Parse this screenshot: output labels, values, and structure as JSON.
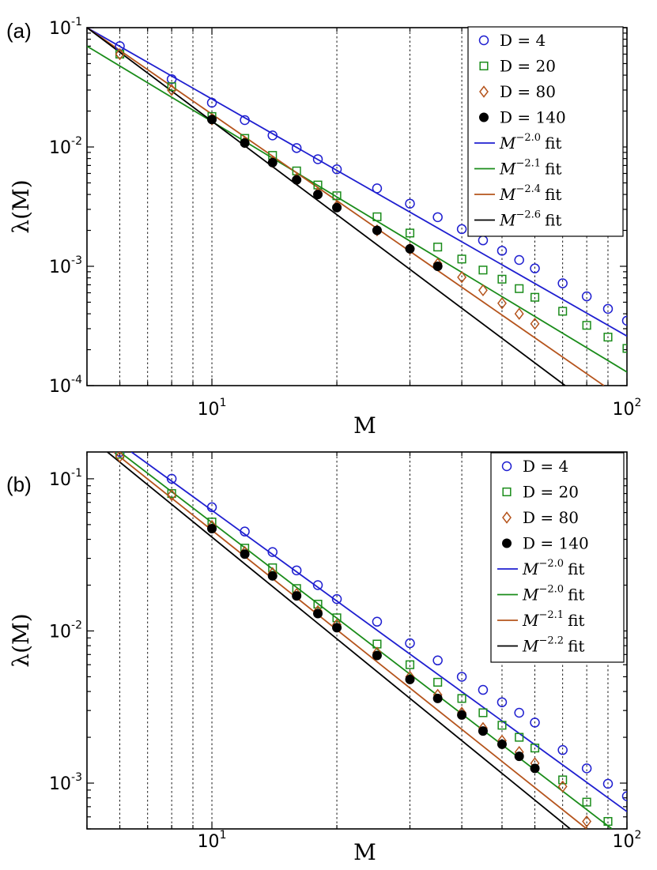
{
  "chart_data": [
    {
      "type": "scatter",
      "panel_label": "(a)",
      "xlabel": "M",
      "ylabel": "λ(M)",
      "x_scale": "log",
      "y_scale": "log",
      "xlim": [
        5,
        100
      ],
      "ylim": [
        0.0001,
        0.1
      ],
      "x_ticks": [
        {
          "value": 10,
          "base": "10",
          "exp": "1"
        },
        {
          "value": 100,
          "base": "10",
          "exp": "2"
        }
      ],
      "y_ticks": [
        {
          "value": 0.1,
          "base": "10",
          "exp": "-1"
        },
        {
          "value": 0.01,
          "base": "10",
          "exp": "-2"
        },
        {
          "value": 0.001,
          "base": "10",
          "exp": "-3"
        },
        {
          "value": 0.0001,
          "base": "10",
          "exp": "-4"
        }
      ],
      "grid": "x-dotted",
      "legend_position": "top-right",
      "series": [
        {
          "name": "D = 4",
          "marker": "circle",
          "color": "#1f1fd0",
          "x": [
            6,
            8,
            10,
            12,
            14,
            16,
            18,
            20,
            25,
            30,
            35,
            40,
            45,
            50,
            55,
            60,
            70,
            80,
            90,
            100
          ],
          "y": [
            0.07,
            0.037,
            0.0235,
            0.0168,
            0.0125,
            0.0098,
            0.0079,
            0.0065,
            0.0045,
            0.00335,
            0.00258,
            0.00205,
            0.00165,
            0.00135,
            0.00113,
            0.00096,
            0.00072,
            0.00056,
            0.00044,
            0.00035
          ]
        },
        {
          "name": "D = 20",
          "marker": "square",
          "color": "#1a8c1a",
          "x": [
            6,
            8,
            10,
            12,
            14,
            16,
            18,
            20,
            25,
            30,
            35,
            40,
            45,
            50,
            55,
            60,
            70,
            80,
            90,
            100
          ],
          "y": [
            0.06,
            0.032,
            0.018,
            0.0118,
            0.0085,
            0.0063,
            0.0048,
            0.0039,
            0.0026,
            0.0019,
            0.00145,
            0.00115,
            0.00093,
            0.00078,
            0.00065,
            0.00055,
            0.00042,
            0.00032,
            0.000255,
            0.000205
          ]
        },
        {
          "name": "D = 80",
          "marker": "diamond",
          "color": "#b5541c",
          "x": [
            6,
            8,
            10,
            12,
            14,
            16,
            18,
            20,
            25,
            30,
            35,
            40,
            45,
            50,
            55,
            60
          ],
          "y": [
            0.06,
            0.03,
            0.017,
            0.011,
            0.0075,
            0.0054,
            0.0041,
            0.0032,
            0.002,
            0.0014,
            0.00105,
            0.00081,
            0.00063,
            0.00049,
            0.0004,
            0.00033
          ]
        },
        {
          "name": "D = 140",
          "marker": "filled-circle",
          "color": "#000000",
          "x": [
            10,
            12,
            14,
            16,
            18,
            20,
            25,
            30,
            35
          ],
          "y": [
            0.017,
            0.0108,
            0.0074,
            0.0053,
            0.004,
            0.0031,
            0.002,
            0.0014,
            0.001
          ]
        }
      ],
      "fits": [
        {
          "name": "M^{-2.0} fit",
          "base": "M",
          "exp": "−2.0",
          "suffix": "fit",
          "color": "#1f1fd0",
          "x": [
            5,
            100
          ],
          "y": [
            0.1,
            0.00026
          ]
        },
        {
          "name": "M^{-2.1} fit",
          "base": "M",
          "exp": "−2.1",
          "suffix": "fit",
          "color": "#1a8c1a",
          "x": [
            5,
            100
          ],
          "y": [
            0.07,
            0.00013
          ]
        },
        {
          "name": "M^{-2.4} fit",
          "base": "M",
          "exp": "−2.4",
          "suffix": "fit",
          "color": "#b5541c",
          "x": [
            5,
            88
          ],
          "y": [
            0.1,
            0.0001
          ]
        },
        {
          "name": "M^{-2.6} fit",
          "base": "M",
          "exp": "−2.6",
          "suffix": "fit",
          "color": "#000000",
          "x": [
            5,
            71
          ],
          "y": [
            0.1,
            0.0001
          ]
        }
      ]
    },
    {
      "type": "scatter",
      "panel_label": "(b)",
      "xlabel": "M",
      "ylabel": "λ(M)",
      "x_scale": "log",
      "y_scale": "log",
      "xlim": [
        5,
        100
      ],
      "ylim": [
        0.0005,
        0.15
      ],
      "x_ticks": [
        {
          "value": 10,
          "base": "10",
          "exp": "1"
        },
        {
          "value": 100,
          "base": "10",
          "exp": "2"
        }
      ],
      "y_ticks": [
        {
          "value": 0.1,
          "base": "10",
          "exp": "-1"
        },
        {
          "value": 0.01,
          "base": "10",
          "exp": "-2"
        },
        {
          "value": 0.001,
          "base": "10",
          "exp": "-3"
        }
      ],
      "grid": "x-dotted",
      "legend_position": "top-right",
      "series": [
        {
          "name": "D = 4",
          "marker": "circle",
          "color": "#1f1fd0",
          "x": [
            6,
            8,
            10,
            12,
            14,
            16,
            18,
            20,
            25,
            30,
            35,
            40,
            45,
            50,
            55,
            60,
            70,
            80,
            90,
            100
          ],
          "y": [
            0.15,
            0.1,
            0.065,
            0.045,
            0.033,
            0.025,
            0.02,
            0.0162,
            0.0115,
            0.0083,
            0.0064,
            0.005,
            0.0041,
            0.0034,
            0.0029,
            0.0025,
            0.00165,
            0.00125,
            0.00099,
            0.00082
          ]
        },
        {
          "name": "D = 20",
          "marker": "square",
          "color": "#1a8c1a",
          "x": [
            6,
            8,
            10,
            12,
            14,
            16,
            18,
            20,
            25,
            30,
            35,
            40,
            45,
            50,
            55,
            60,
            70,
            80,
            90
          ],
          "y": [
            0.145,
            0.08,
            0.052,
            0.035,
            0.026,
            0.019,
            0.015,
            0.0122,
            0.0082,
            0.006,
            0.0046,
            0.0036,
            0.0029,
            0.0024,
            0.002,
            0.0017,
            0.00105,
            0.00075,
            0.00056
          ]
        },
        {
          "name": "D = 80",
          "marker": "diamond",
          "color": "#b5541c",
          "x": [
            6,
            8,
            10,
            12,
            14,
            16,
            18,
            20,
            25,
            30,
            35,
            40,
            45,
            50,
            55,
            60,
            70,
            80
          ],
          "y": [
            0.14,
            0.078,
            0.049,
            0.033,
            0.024,
            0.0175,
            0.0135,
            0.011,
            0.0072,
            0.005,
            0.0038,
            0.0029,
            0.0023,
            0.0019,
            0.0016,
            0.00135,
            0.00095,
            0.00056
          ]
        },
        {
          "name": "D = 140",
          "marker": "filled-circle",
          "color": "#000000",
          "x": [
            10,
            12,
            14,
            16,
            18,
            20,
            25,
            30,
            35,
            40,
            45,
            50,
            55,
            60
          ],
          "y": [
            0.047,
            0.032,
            0.023,
            0.017,
            0.013,
            0.0105,
            0.0069,
            0.0048,
            0.0036,
            0.0028,
            0.0022,
            0.0018,
            0.0015,
            0.00125
          ]
        }
      ],
      "fits": [
        {
          "name": "M^{-2.0} fit",
          "base": "M",
          "exp": "−2.0",
          "suffix": "fit",
          "color": "#1f1fd0",
          "x": [
            6.4,
            100
          ],
          "y": [
            0.15,
            0.00065
          ]
        },
        {
          "name": "M^{-2.0} fit",
          "base": "M",
          "exp": "−2.0",
          "suffix": "fit",
          "color": "#1a8c1a",
          "x": [
            6,
            92
          ],
          "y": [
            0.15,
            0.0005
          ]
        },
        {
          "name": "M^{-2.1} fit",
          "base": "M",
          "exp": "−2.1",
          "suffix": "fit",
          "color": "#b5541c",
          "x": [
            5.8,
            80
          ],
          "y": [
            0.15,
            0.0005
          ]
        },
        {
          "name": "M^{-2.2} fit",
          "base": "M",
          "exp": "−2.2",
          "suffix": "fit",
          "color": "#000000",
          "x": [
            5.6,
            73
          ],
          "y": [
            0.15,
            0.0005
          ]
        }
      ]
    }
  ]
}
